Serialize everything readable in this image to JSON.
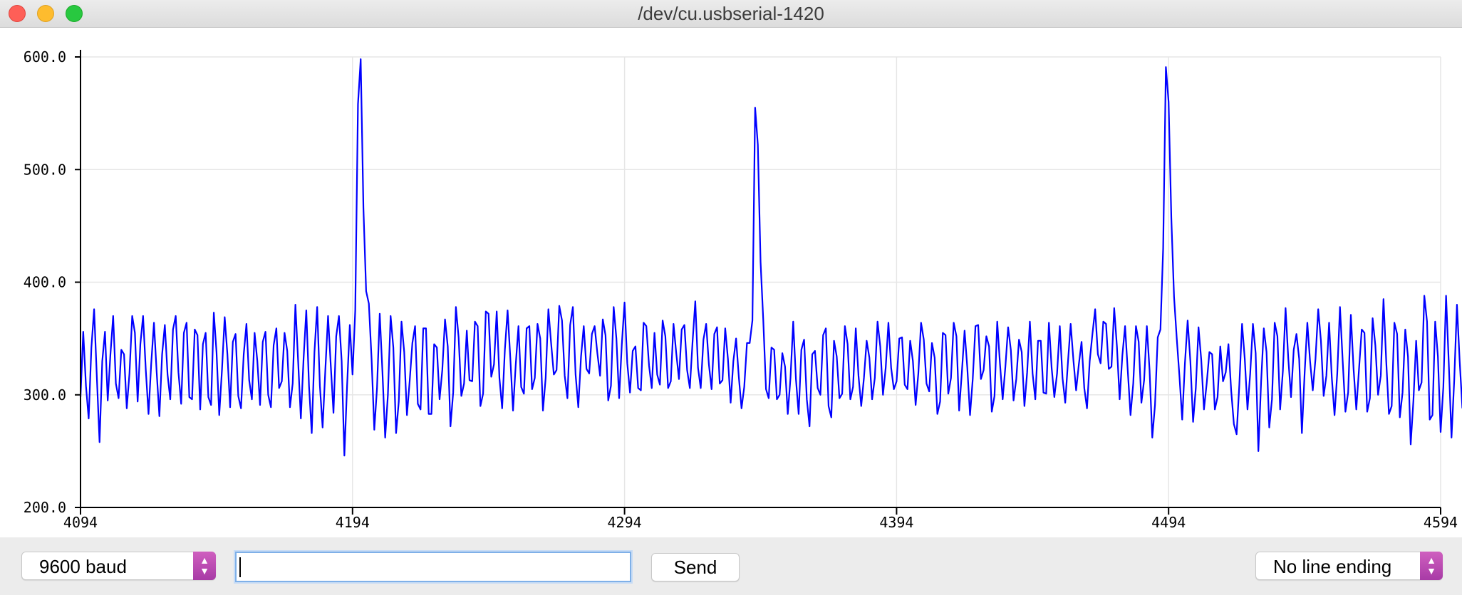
{
  "window": {
    "title": "/dev/cu.usbserial-1420"
  },
  "controls": {
    "baud_label": "9600 baud",
    "send_label": "Send",
    "line_ending_label": "No line ending",
    "input_value": ""
  },
  "colors": {
    "line": "#0000ff",
    "grid": "#e6e6e6",
    "axis": "#000000"
  },
  "chart_data": {
    "type": "line",
    "title": "",
    "xlabel": "",
    "ylabel": "",
    "xlim": [
      4094,
      4594
    ],
    "ylim": [
      200,
      600
    ],
    "x_ticks": [
      "4094",
      "4194",
      "4294",
      "4394",
      "4494",
      "4594"
    ],
    "y_ticks": [
      "200.0",
      "300.0",
      "400.0",
      "500.0",
      "600.0"
    ],
    "grid": true,
    "legend": "none",
    "series": [
      {
        "x_start": 4094,
        "x_step": 1,
        "values": [
          298,
          356,
          308,
          279,
          342,
          376,
          316,
          258,
          330,
          356,
          295,
          336,
          370,
          310,
          297,
          340,
          336,
          288,
          319,
          370,
          355,
          294,
          345,
          370,
          322,
          283,
          328,
          364,
          320,
          281,
          336,
          362,
          318,
          296,
          358,
          370,
          320,
          292,
          355,
          364,
          298,
          296,
          358,
          353,
          287,
          345,
          355,
          298,
          291,
          373,
          338,
          282,
          322,
          369,
          336,
          289,
          347,
          354,
          299,
          288,
          336,
          363,
          313,
          296,
          355,
          330,
          291,
          347,
          356,
          300,
          289,
          344,
          359,
          306,
          312,
          355,
          339,
          289,
          310,
          380,
          330,
          279,
          332,
          375,
          308,
          266,
          338,
          378,
          308,
          271,
          322,
          370,
          326,
          284,
          352,
          370,
          330,
          246,
          308,
          362,
          318,
          375,
          558,
          598,
          466,
          392,
          381,
          332,
          269,
          306,
          372,
          320,
          262,
          300,
          370,
          342,
          266,
          294,
          365,
          338,
          282,
          312,
          346,
          361,
          292,
          287,
          359,
          359,
          283,
          283,
          345,
          342,
          296,
          322,
          367,
          343,
          272,
          302,
          378,
          351,
          299,
          310,
          357,
          313,
          312,
          365,
          361,
          290,
          301,
          374,
          372,
          316,
          327,
          374,
          315,
          288,
          340,
          375,
          333,
          286,
          327,
          361,
          307,
          301,
          359,
          361,
          305,
          315,
          363,
          350,
          286,
          315,
          376,
          346,
          318,
          322,
          379,
          366,
          317,
          297,
          362,
          378,
          318,
          289,
          334,
          361,
          323,
          319,
          354,
          361,
          337,
          317,
          367,
          353,
          295,
          308,
          378,
          350,
          297,
          345,
          382,
          328,
          302,
          339,
          343,
          306,
          304,
          364,
          361,
          326,
          306,
          355,
          318,
          309,
          366,
          352,
          306,
          312,
          363,
          337,
          314,
          358,
          362,
          322,
          306,
          347,
          383,
          324,
          306,
          349,
          363,
          327,
          305,
          354,
          360,
          310,
          313,
          359,
          332,
          293,
          330,
          350,
          316,
          288,
          307,
          346,
          346,
          366,
          555,
          522,
          418,
          366,
          305,
          297,
          342,
          340,
          296,
          300,
          337,
          325,
          283,
          315,
          365,
          314,
          283,
          340,
          349,
          296,
          272,
          336,
          339,
          306,
          300,
          353,
          359,
          290,
          280,
          348,
          334,
          297,
          301,
          361,
          345,
          296,
          307,
          359,
          317,
          290,
          315,
          348,
          333,
          296,
          315,
          365,
          343,
          300,
          324,
          364,
          324,
          305,
          312,
          350,
          351,
          309,
          305,
          348,
          330,
          291,
          319,
          364,
          349,
          310,
          303,
          346,
          333,
          283,
          294,
          355,
          353,
          301,
          315,
          364,
          352,
          286,
          320,
          357,
          324,
          282,
          314,
          361,
          362,
          314,
          322,
          352,
          343,
          285,
          299,
          365,
          328,
          296,
          325,
          360,
          340,
          295,
          314,
          349,
          338,
          290,
          320,
          365,
          319,
          296,
          348,
          348,
          302,
          301,
          364,
          324,
          298,
          319,
          361,
          315,
          293,
          329,
          363,
          331,
          304,
          327,
          347,
          306,
          288,
          330,
          354,
          376,
          336,
          328,
          365,
          363,
          323,
          325,
          377,
          343,
          296,
          335,
          361,
          321,
          282,
          310,
          361,
          347,
          293,
          313,
          361,
          322,
          262,
          291,
          351,
          358,
          430,
          591,
          560,
          457,
          387,
          350,
          316,
          278,
          328,
          366,
          330,
          276,
          306,
          360,
          331,
          287,
          310,
          338,
          336,
          287,
          298,
          343,
          312,
          320,
          345,
          304,
          274,
          265,
          309,
          363,
          332,
          287,
          319,
          363,
          337,
          250,
          311,
          359,
          338,
          271,
          296,
          364,
          352,
          287,
          321,
          377,
          332,
          298,
          340,
          354,
          332,
          266,
          319,
          364,
          330,
          304,
          332,
          376,
          348,
          299,
          317,
          364,
          315,
          282,
          319,
          378,
          330,
          285,
          302,
          371,
          323,
          287,
          323,
          358,
          355,
          285,
          297,
          368,
          344,
          300,
          317,
          385,
          330,
          283,
          290,
          364,
          354,
          280,
          302,
          358,
          334,
          256,
          295,
          348,
          304,
          311,
          388,
          365,
          278,
          282,
          365,
          334,
          267,
          307,
          388,
          328,
          262,
          313,
          380,
          330,
          288
        ]
      }
    ]
  }
}
